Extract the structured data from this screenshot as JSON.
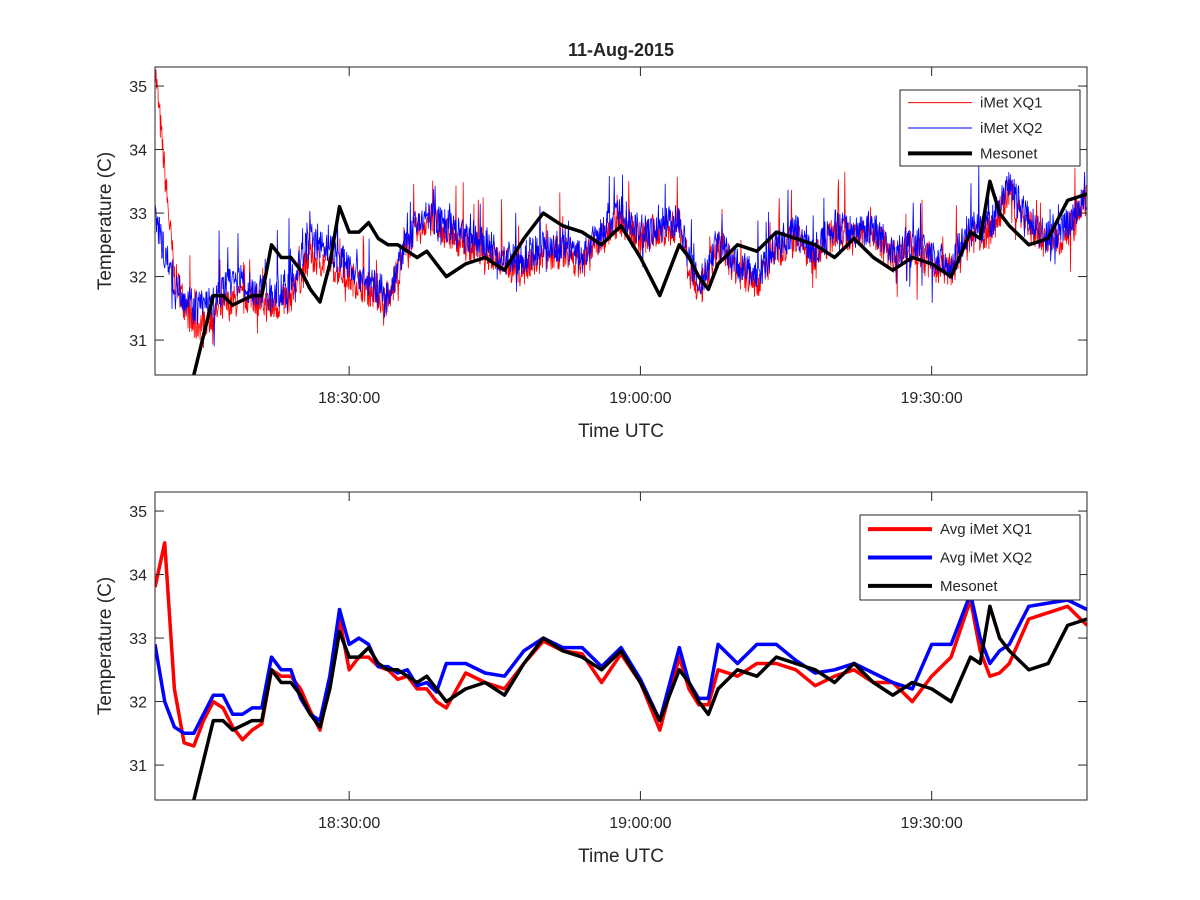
{
  "title": "11-Aug-2015",
  "chart_data": [
    {
      "type": "line",
      "title": "11-Aug-2015",
      "xlabel": "Time UTC",
      "ylabel": "Temperature (C)",
      "xlim": [
        "18:10:00",
        "19:46:00"
      ],
      "ylim": [
        30.45,
        35.3
      ],
      "xticks": [
        "18:30:00",
        "19:00:00",
        "19:30:00"
      ],
      "yticks": [
        31,
        32,
        33,
        34,
        35
      ],
      "grid": false,
      "legend_position": "top-right",
      "legend": [
        "iMet XQ1",
        "iMet XQ2",
        "Mesonet"
      ],
      "series": [
        {
          "name": "iMet XQ1",
          "color": "#ff0000",
          "style": "noisy",
          "x": [
            "18:10:00",
            "18:12:00",
            "18:14:00",
            "18:16:00",
            "18:18:00",
            "18:20:00",
            "18:22:00",
            "18:24:00",
            "18:26:00",
            "18:28:00",
            "18:30:00",
            "18:32:00",
            "18:34:00",
            "18:36:00",
            "18:38:00",
            "18:40:00",
            "18:42:00",
            "18:44:00",
            "18:46:00",
            "18:48:00",
            "18:50:00",
            "18:52:00",
            "18:54:00",
            "18:56:00",
            "18:58:00",
            "19:00:00",
            "19:02:00",
            "19:04:00",
            "19:06:00",
            "19:08:00",
            "19:10:00",
            "19:12:00",
            "19:14:00",
            "19:16:00",
            "19:18:00",
            "19:20:00",
            "19:22:00",
            "19:24:00",
            "19:26:00",
            "19:28:00",
            "19:30:00",
            "19:32:00",
            "19:34:00",
            "19:36:00",
            "19:38:00",
            "19:40:00",
            "19:42:00",
            "19:44:00",
            "19:46:00"
          ],
          "y": [
            35.3,
            32.0,
            31.2,
            31.4,
            31.6,
            31.7,
            31.5,
            31.7,
            32.3,
            32.2,
            32.0,
            31.8,
            31.6,
            32.5,
            32.9,
            32.7,
            32.5,
            32.4,
            32.2,
            32.1,
            32.3,
            32.4,
            32.2,
            32.6,
            32.9,
            32.6,
            32.7,
            32.8,
            31.7,
            32.5,
            32.1,
            31.9,
            32.4,
            32.6,
            32.3,
            32.7,
            32.6,
            32.7,
            32.3,
            32.5,
            32.2,
            32.1,
            32.6,
            32.7,
            33.3,
            32.8,
            32.5,
            32.7,
            33.2
          ]
        },
        {
          "name": "iMet XQ2",
          "color": "#0000ff",
          "style": "noisy",
          "x": [
            "18:10:00",
            "18:12:00",
            "18:14:00",
            "18:16:00",
            "18:18:00",
            "18:20:00",
            "18:22:00",
            "18:24:00",
            "18:26:00",
            "18:28:00",
            "18:30:00",
            "18:32:00",
            "18:34:00",
            "18:36:00",
            "18:38:00",
            "18:40:00",
            "18:42:00",
            "18:44:00",
            "18:46:00",
            "18:48:00",
            "18:50:00",
            "18:52:00",
            "18:54:00",
            "18:56:00",
            "18:58:00",
            "19:00:00",
            "19:02:00",
            "19:04:00",
            "19:06:00",
            "19:08:00",
            "19:10:00",
            "19:12:00",
            "19:14:00",
            "19:16:00",
            "19:18:00",
            "19:20:00",
            "19:22:00",
            "19:24:00",
            "19:26:00",
            "19:28:00",
            "19:30:00",
            "19:32:00",
            "19:34:00",
            "19:36:00",
            "19:38:00",
            "19:40:00",
            "19:42:00",
            "19:44:00",
            "19:46:00"
          ],
          "y": [
            32.9,
            31.9,
            31.5,
            31.6,
            32.0,
            31.8,
            31.7,
            31.9,
            32.6,
            32.4,
            32.2,
            31.9,
            31.7,
            32.6,
            33.0,
            32.8,
            32.6,
            32.5,
            32.3,
            32.3,
            32.5,
            32.5,
            32.3,
            32.7,
            33.0,
            32.7,
            32.8,
            32.9,
            31.8,
            32.6,
            32.2,
            32.0,
            32.5,
            32.7,
            32.4,
            32.8,
            32.7,
            32.8,
            32.4,
            32.6,
            32.3,
            32.2,
            32.7,
            32.8,
            33.4,
            32.9,
            32.6,
            32.8,
            33.3
          ]
        },
        {
          "name": "Mesonet",
          "color": "#000000",
          "style": "thick",
          "x": [
            "18:14:00",
            "18:16:00",
            "18:17:00",
            "18:18:00",
            "18:20:00",
            "18:21:00",
            "18:22:00",
            "18:23:00",
            "18:24:00",
            "18:25:00",
            "18:26:00",
            "18:27:00",
            "18:28:00",
            "18:29:00",
            "18:30:00",
            "18:31:00",
            "18:32:00",
            "18:33:00",
            "18:34:00",
            "18:35:00",
            "18:36:00",
            "18:37:00",
            "18:38:00",
            "18:39:00",
            "18:40:00",
            "18:42:00",
            "18:44:00",
            "18:46:00",
            "18:48:00",
            "18:50:00",
            "18:52:00",
            "18:54:00",
            "18:56:00",
            "18:58:00",
            "19:00:00",
            "19:02:00",
            "19:04:00",
            "19:05:00",
            "19:06:00",
            "19:07:00",
            "19:08:00",
            "19:10:00",
            "19:12:00",
            "19:14:00",
            "19:16:00",
            "19:18:00",
            "19:20:00",
            "19:22:00",
            "19:24:00",
            "19:26:00",
            "19:28:00",
            "19:30:00",
            "19:32:00",
            "19:34:00",
            "19:35:00",
            "19:36:00",
            "19:37:00",
            "19:38:00",
            "19:40:00",
            "19:42:00",
            "19:44:00",
            "19:46:00"
          ],
          "y": [
            30.45,
            31.7,
            31.7,
            31.55,
            31.7,
            31.7,
            32.5,
            32.3,
            32.3,
            32.1,
            31.8,
            31.6,
            32.2,
            33.1,
            32.7,
            32.7,
            32.85,
            32.6,
            32.5,
            32.5,
            32.4,
            32.3,
            32.4,
            32.2,
            32.0,
            32.2,
            32.3,
            32.1,
            32.6,
            33.0,
            32.8,
            32.7,
            32.5,
            32.8,
            32.3,
            31.7,
            32.5,
            32.3,
            32.0,
            31.8,
            32.2,
            32.5,
            32.4,
            32.7,
            32.6,
            32.5,
            32.3,
            32.6,
            32.3,
            32.1,
            32.3,
            32.2,
            32.0,
            32.7,
            32.6,
            33.5,
            33.0,
            32.8,
            32.5,
            32.6,
            33.2,
            33.3
          ]
        }
      ]
    },
    {
      "type": "line",
      "xlabel": "Time UTC",
      "ylabel": "Temperature (C)",
      "xlim": [
        "18:10:00",
        "19:46:00"
      ],
      "ylim": [
        30.45,
        35.3
      ],
      "xticks": [
        "18:30:00",
        "19:00:00",
        "19:30:00"
      ],
      "yticks": [
        31,
        32,
        33,
        34,
        35
      ],
      "grid": false,
      "legend_position": "top-right",
      "legend": [
        "Avg iMet XQ1",
        "Avg iMet XQ2",
        "Mesonet"
      ],
      "series": [
        {
          "name": "Avg iMet XQ1",
          "color": "#ff0000",
          "style": "thick",
          "x": [
            "18:10:00",
            "18:11:00",
            "18:12:00",
            "18:13:00",
            "18:14:00",
            "18:15:00",
            "18:16:00",
            "18:17:00",
            "18:18:00",
            "18:19:00",
            "18:20:00",
            "18:21:00",
            "18:22:00",
            "18:23:00",
            "18:24:00",
            "18:25:00",
            "18:26:00",
            "18:27:00",
            "18:28:00",
            "18:29:00",
            "18:30:00",
            "18:31:00",
            "18:32:00",
            "18:33:00",
            "18:34:00",
            "18:35:00",
            "18:36:00",
            "18:37:00",
            "18:38:00",
            "18:39:00",
            "18:40:00",
            "18:42:00",
            "18:44:00",
            "18:46:00",
            "18:48:00",
            "18:50:00",
            "18:52:00",
            "18:54:00",
            "18:56:00",
            "18:58:00",
            "19:00:00",
            "19:02:00",
            "19:04:00",
            "19:05:00",
            "19:06:00",
            "19:07:00",
            "19:08:00",
            "19:10:00",
            "19:12:00",
            "19:14:00",
            "19:16:00",
            "19:18:00",
            "19:20:00",
            "19:22:00",
            "19:24:00",
            "19:26:00",
            "19:28:00",
            "19:30:00",
            "19:32:00",
            "19:34:00",
            "19:35:00",
            "19:36:00",
            "19:37:00",
            "19:38:00",
            "19:40:00",
            "19:42:00",
            "19:44:00",
            "19:46:00"
          ],
          "y": [
            33.8,
            34.5,
            32.2,
            31.35,
            31.3,
            31.7,
            32.0,
            31.9,
            31.6,
            31.4,
            31.55,
            31.65,
            32.5,
            32.4,
            32.4,
            32.2,
            31.85,
            31.55,
            32.3,
            33.3,
            32.5,
            32.7,
            32.7,
            32.55,
            32.5,
            32.35,
            32.4,
            32.2,
            32.2,
            32.0,
            31.9,
            32.45,
            32.3,
            32.2,
            32.6,
            32.95,
            32.8,
            32.75,
            32.3,
            32.75,
            32.3,
            31.55,
            32.7,
            32.2,
            31.95,
            31.95,
            32.5,
            32.4,
            32.6,
            32.6,
            32.5,
            32.25,
            32.4,
            32.5,
            32.3,
            32.3,
            32.0,
            32.4,
            32.7,
            33.6,
            32.8,
            32.4,
            32.45,
            32.6,
            33.3,
            33.4,
            33.5,
            33.2
          ]
        },
        {
          "name": "Avg iMet XQ2",
          "color": "#0000ff",
          "style": "thick",
          "x": [
            "18:10:00",
            "18:11:00",
            "18:12:00",
            "18:13:00",
            "18:14:00",
            "18:15:00",
            "18:16:00",
            "18:17:00",
            "18:18:00",
            "18:19:00",
            "18:20:00",
            "18:21:00",
            "18:22:00",
            "18:23:00",
            "18:24:00",
            "18:25:00",
            "18:26:00",
            "18:27:00",
            "18:28:00",
            "18:29:00",
            "18:30:00",
            "18:31:00",
            "18:32:00",
            "18:33:00",
            "18:34:00",
            "18:35:00",
            "18:36:00",
            "18:37:00",
            "18:38:00",
            "18:39:00",
            "18:40:00",
            "18:42:00",
            "18:44:00",
            "18:46:00",
            "18:48:00",
            "18:50:00",
            "18:52:00",
            "18:54:00",
            "18:56:00",
            "18:58:00",
            "19:00:00",
            "19:02:00",
            "19:04:00",
            "19:05:00",
            "19:06:00",
            "19:07:00",
            "19:08:00",
            "19:10:00",
            "19:12:00",
            "19:14:00",
            "19:16:00",
            "19:18:00",
            "19:20:00",
            "19:22:00",
            "19:24:00",
            "19:26:00",
            "19:28:00",
            "19:30:00",
            "19:32:00",
            "19:34:00",
            "19:35:00",
            "19:36:00",
            "19:37:00",
            "19:38:00",
            "19:40:00",
            "19:42:00",
            "19:44:00",
            "19:46:00"
          ],
          "y": [
            32.9,
            32.0,
            31.6,
            31.5,
            31.5,
            31.8,
            32.1,
            32.1,
            31.8,
            31.8,
            31.9,
            31.9,
            32.7,
            32.5,
            32.5,
            32.05,
            31.8,
            31.7,
            32.4,
            33.45,
            32.9,
            33.0,
            32.9,
            32.55,
            32.55,
            32.45,
            32.5,
            32.25,
            32.3,
            32.15,
            32.6,
            32.6,
            32.45,
            32.4,
            32.8,
            33.0,
            32.85,
            32.85,
            32.55,
            32.85,
            32.35,
            31.7,
            32.85,
            32.3,
            32.05,
            32.05,
            32.9,
            32.6,
            32.9,
            32.9,
            32.65,
            32.45,
            32.5,
            32.6,
            32.45,
            32.3,
            32.2,
            32.9,
            32.9,
            33.7,
            33.0,
            32.6,
            32.8,
            32.9,
            33.5,
            33.55,
            33.6,
            33.45
          ]
        },
        {
          "name": "Mesonet",
          "color": "#000000",
          "style": "thick",
          "x": [
            "18:14:00",
            "18:16:00",
            "18:17:00",
            "18:18:00",
            "18:20:00",
            "18:21:00",
            "18:22:00",
            "18:23:00",
            "18:24:00",
            "18:25:00",
            "18:26:00",
            "18:27:00",
            "18:28:00",
            "18:29:00",
            "18:30:00",
            "18:31:00",
            "18:32:00",
            "18:33:00",
            "18:34:00",
            "18:35:00",
            "18:36:00",
            "18:37:00",
            "18:38:00",
            "18:39:00",
            "18:40:00",
            "18:42:00",
            "18:44:00",
            "18:46:00",
            "18:48:00",
            "18:50:00",
            "18:52:00",
            "18:54:00",
            "18:56:00",
            "18:58:00",
            "19:00:00",
            "19:02:00",
            "19:04:00",
            "19:05:00",
            "19:06:00",
            "19:07:00",
            "19:08:00",
            "19:10:00",
            "19:12:00",
            "19:14:00",
            "19:16:00",
            "19:18:00",
            "19:20:00",
            "19:22:00",
            "19:24:00",
            "19:26:00",
            "19:28:00",
            "19:30:00",
            "19:32:00",
            "19:34:00",
            "19:35:00",
            "19:36:00",
            "19:37:00",
            "19:38:00",
            "19:40:00",
            "19:42:00",
            "19:44:00",
            "19:46:00"
          ],
          "y": [
            30.45,
            31.7,
            31.7,
            31.55,
            31.7,
            31.7,
            32.5,
            32.3,
            32.3,
            32.1,
            31.8,
            31.6,
            32.2,
            33.1,
            32.7,
            32.7,
            32.85,
            32.6,
            32.5,
            32.5,
            32.4,
            32.3,
            32.4,
            32.2,
            32.0,
            32.2,
            32.3,
            32.1,
            32.6,
            33.0,
            32.8,
            32.7,
            32.5,
            32.8,
            32.3,
            31.7,
            32.5,
            32.3,
            32.0,
            31.8,
            32.2,
            32.5,
            32.4,
            32.7,
            32.6,
            32.5,
            32.3,
            32.6,
            32.3,
            32.1,
            32.3,
            32.2,
            32.0,
            32.7,
            32.6,
            33.5,
            33.0,
            32.8,
            32.5,
            32.6,
            33.2,
            33.3
          ]
        }
      ]
    }
  ]
}
